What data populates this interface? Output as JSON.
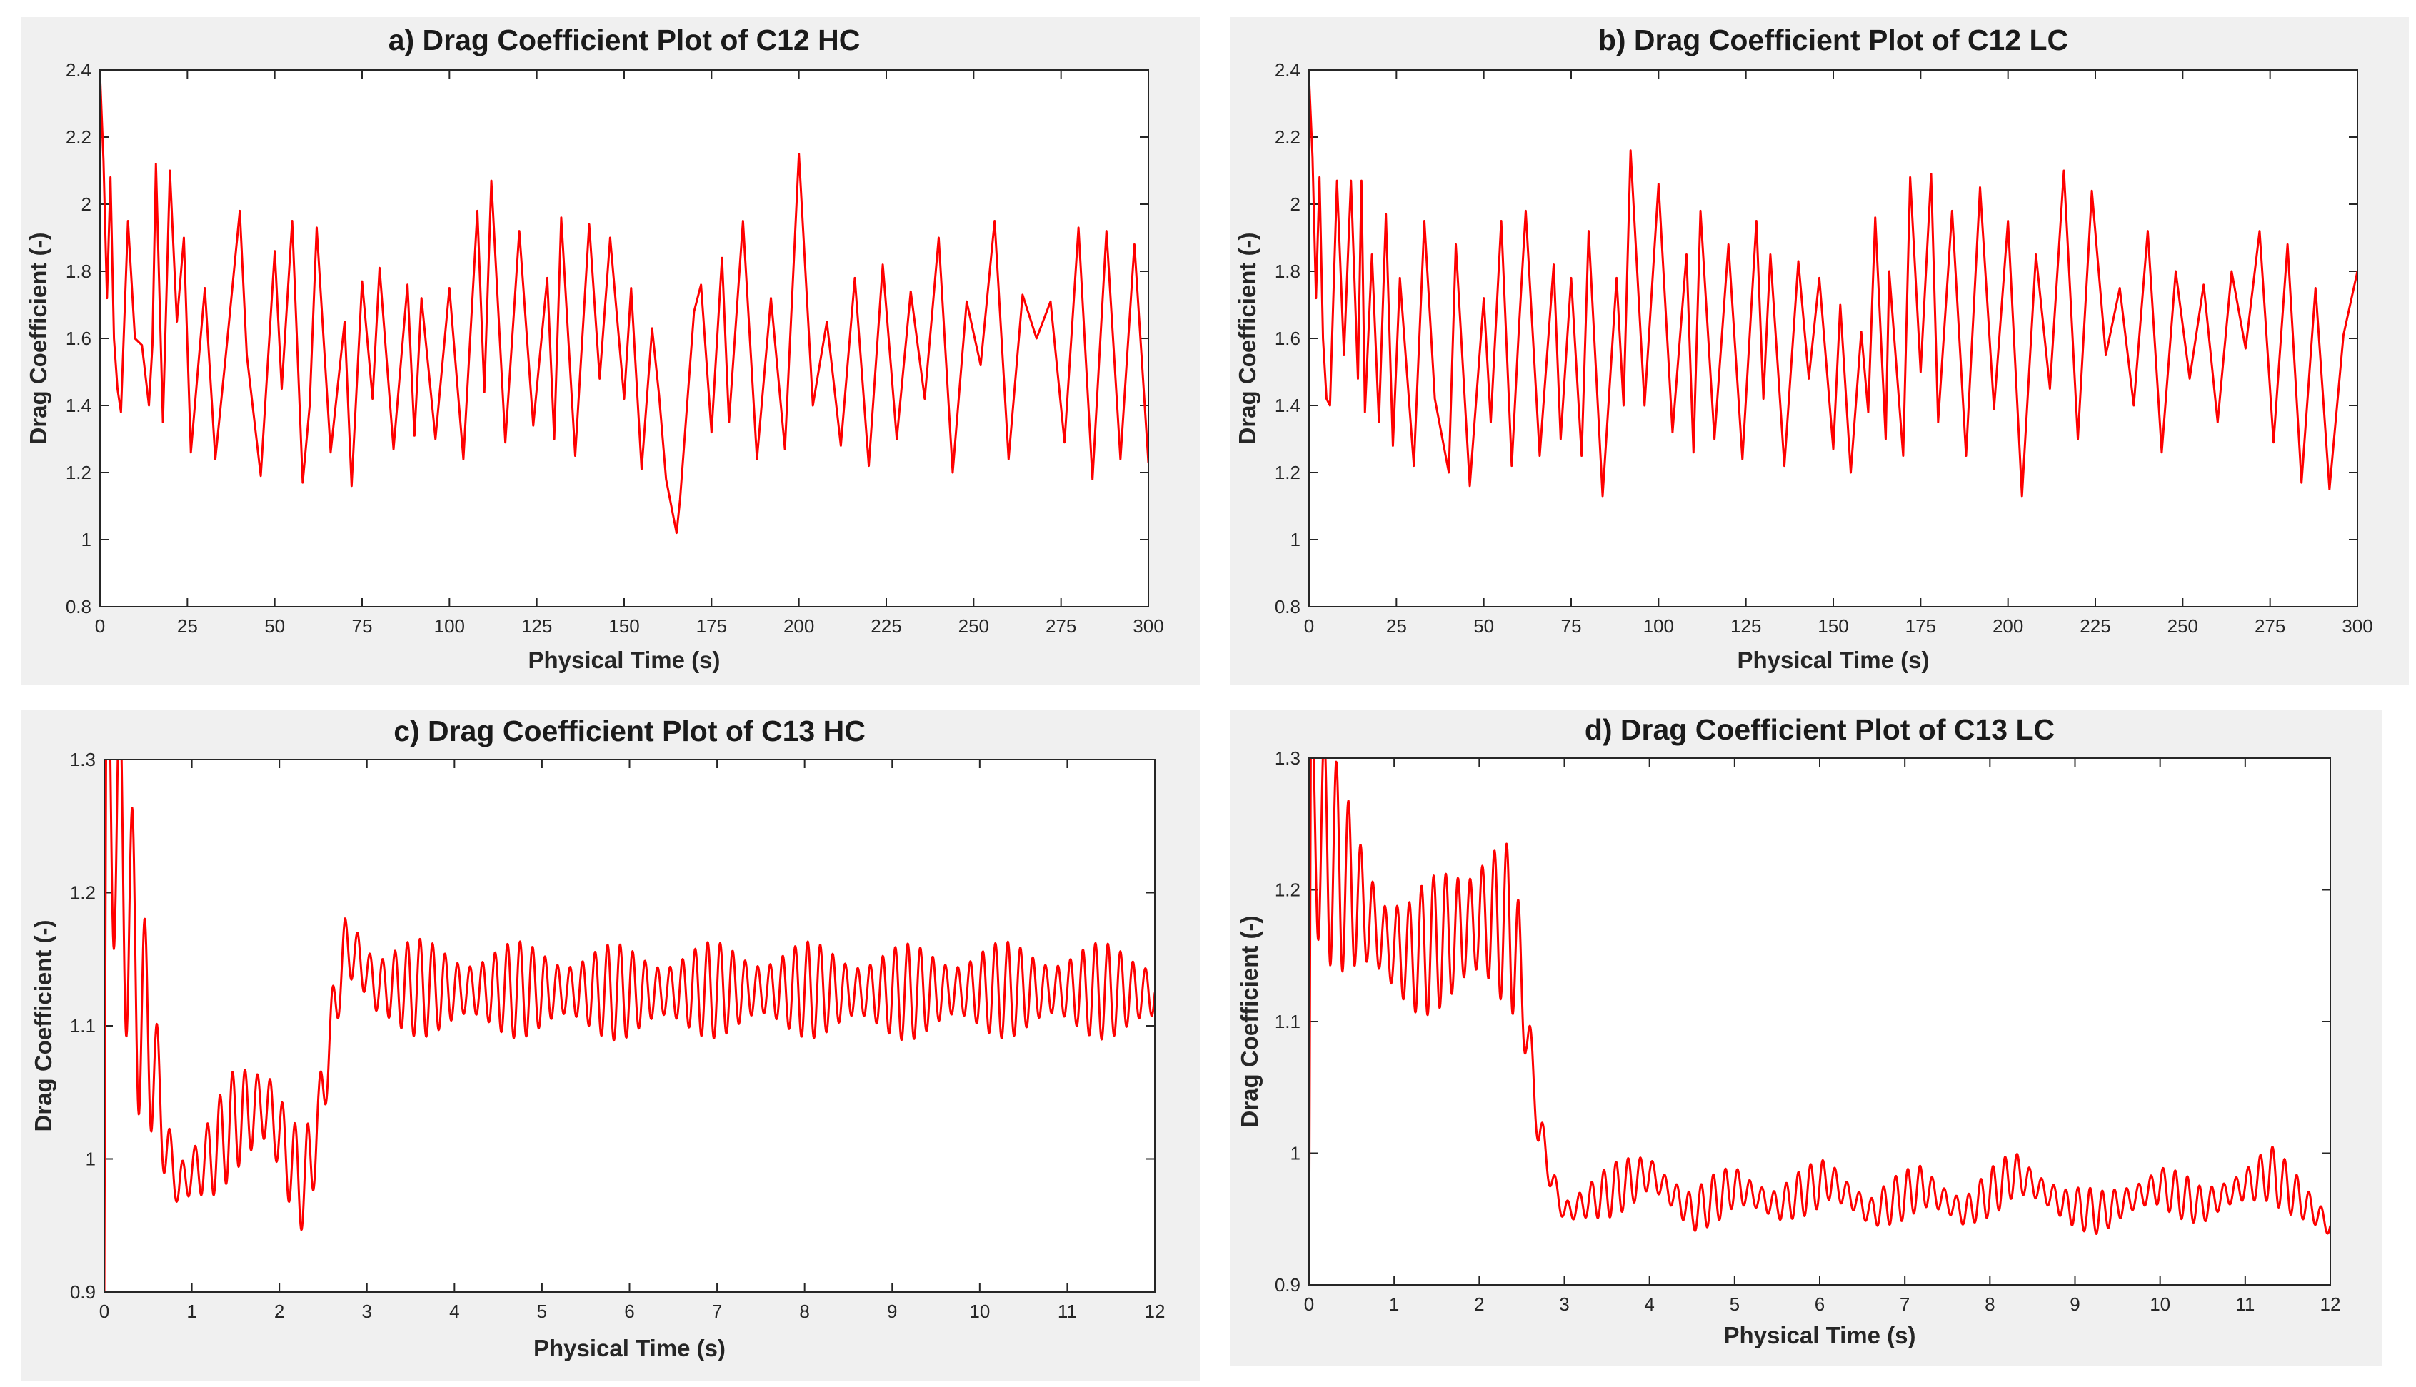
{
  "colors": {
    "line": "#ff0000",
    "axis": "#262626",
    "panel_bg": "#f0f0f0",
    "plot_bg": "#ffffff"
  },
  "chart_data": [
    {
      "id": "a",
      "type": "line",
      "title": "a) Drag Coefficient Plot of C12 HC",
      "xlabel": "Physical Time (s)",
      "ylabel": "Drag Coefficient (-)",
      "xlim": [
        0,
        300
      ],
      "ylim": [
        0.8,
        2.4
      ],
      "xticks": [
        0,
        25,
        50,
        75,
        100,
        125,
        150,
        175,
        200,
        225,
        250,
        275,
        300
      ],
      "yticks": [
        0.8,
        1,
        1.2,
        1.4,
        1.6,
        1.8,
        2,
        2.2,
        2.4
      ],
      "xtick_labels": [
        "0",
        "25",
        "50",
        "75",
        "100",
        "125",
        "150",
        "175",
        "200",
        "225",
        "250",
        "275",
        "300"
      ],
      "ytick_labels": [
        "0.8",
        "1",
        "1.2",
        "1.4",
        "1.6",
        "1.8",
        "2",
        "2.2",
        "2.4"
      ],
      "series": [
        {
          "name": "Cd",
          "color": "#ff0000",
          "x": [
            0,
            1,
            2,
            3,
            4,
            5,
            6,
            8,
            10,
            12,
            14,
            15,
            16,
            18,
            20,
            22,
            24,
            26,
            30,
            33,
            36,
            40,
            42,
            46,
            50,
            52,
            55,
            58,
            60,
            62,
            66,
            70,
            72,
            75,
            78,
            80,
            84,
            88,
            90,
            92,
            96,
            100,
            104,
            108,
            110,
            112,
            116,
            120,
            124,
            128,
            130,
            132,
            136,
            140,
            143,
            146,
            150,
            152,
            155,
            158,
            160,
            162,
            165,
            166,
            170,
            172,
            175,
            178,
            180,
            184,
            188,
            192,
            196,
            200,
            204,
            208,
            212,
            216,
            220,
            224,
            228,
            232,
            236,
            240,
            244,
            248,
            252,
            256,
            260,
            264,
            268,
            272,
            276,
            280,
            284,
            288,
            292,
            296,
            300
          ],
          "y": [
            2.39,
            2.13,
            1.72,
            2.08,
            1.6,
            1.45,
            1.38,
            1.95,
            1.6,
            1.58,
            1.4,
            1.58,
            2.12,
            1.35,
            2.1,
            1.65,
            1.9,
            1.26,
            1.75,
            1.24,
            1.55,
            1.98,
            1.55,
            1.19,
            1.86,
            1.45,
            1.95,
            1.17,
            1.4,
            1.93,
            1.26,
            1.65,
            1.16,
            1.77,
            1.42,
            1.81,
            1.27,
            1.76,
            1.31,
            1.72,
            1.3,
            1.75,
            1.24,
            1.98,
            1.44,
            2.07,
            1.29,
            1.92,
            1.34,
            1.78,
            1.3,
            1.96,
            1.25,
            1.94,
            1.48,
            1.9,
            1.42,
            1.75,
            1.21,
            1.63,
            1.43,
            1.18,
            1.02,
            1.12,
            1.68,
            1.76,
            1.32,
            1.84,
            1.35,
            1.95,
            1.24,
            1.72,
            1.27,
            2.15,
            1.4,
            1.65,
            1.28,
            1.78,
            1.22,
            1.82,
            1.3,
            1.74,
            1.42,
            1.9,
            1.2,
            1.71,
            1.52,
            1.95,
            1.24,
            1.73,
            1.6,
            1.71,
            1.29,
            1.93,
            1.18,
            1.92,
            1.24,
            1.88,
            1.23
          ]
        }
      ]
    },
    {
      "id": "b",
      "type": "line",
      "title": "b) Drag Coefficient Plot of C12 LC",
      "xlabel": "Physical Time (s)",
      "ylabel": "Drag Coefficient (-)",
      "xlim": [
        0,
        300
      ],
      "ylim": [
        0.8,
        2.4
      ],
      "xticks": [
        0,
        25,
        50,
        75,
        100,
        125,
        150,
        175,
        200,
        225,
        250,
        275,
        300
      ],
      "yticks": [
        0.8,
        1,
        1.2,
        1.4,
        1.6,
        1.8,
        2,
        2.2,
        2.4
      ],
      "xtick_labels": [
        "0",
        "25",
        "50",
        "75",
        "100",
        "125",
        "150",
        "175",
        "200",
        "225",
        "250",
        "275",
        "300"
      ],
      "ytick_labels": [
        "0.8",
        "1",
        "1.2",
        "1.4",
        "1.6",
        "1.8",
        "2",
        "2.2",
        "2.4"
      ],
      "series": [
        {
          "name": "Cd",
          "color": "#ff0000",
          "x": [
            0,
            1,
            2,
            3,
            4,
            5,
            6,
            8,
            10,
            12,
            14,
            15,
            16,
            18,
            20,
            22,
            24,
            26,
            30,
            33,
            36,
            40,
            42,
            46,
            50,
            52,
            55,
            58,
            60,
            62,
            66,
            70,
            72,
            75,
            78,
            80,
            84,
            88,
            90,
            92,
            96,
            100,
            104,
            108,
            110,
            112,
            116,
            120,
            124,
            128,
            130,
            132,
            136,
            140,
            143,
            146,
            150,
            152,
            155,
            158,
            160,
            162,
            165,
            166,
            170,
            172,
            175,
            178,
            180,
            184,
            188,
            192,
            196,
            200,
            204,
            208,
            212,
            216,
            220,
            224,
            228,
            232,
            236,
            240,
            244,
            248,
            252,
            256,
            260,
            264,
            268,
            272,
            276,
            280,
            284,
            288,
            292,
            296,
            300
          ],
          "y": [
            2.38,
            2.14,
            1.72,
            2.08,
            1.6,
            1.42,
            1.4,
            2.07,
            1.55,
            2.07,
            1.48,
            2.07,
            1.38,
            1.85,
            1.35,
            1.97,
            1.28,
            1.78,
            1.22,
            1.95,
            1.42,
            1.2,
            1.88,
            1.16,
            1.72,
            1.35,
            1.95,
            1.22,
            1.62,
            1.98,
            1.25,
            1.82,
            1.3,
            1.78,
            1.25,
            1.92,
            1.13,
            1.78,
            1.4,
            2.16,
            1.4,
            2.06,
            1.32,
            1.85,
            1.26,
            1.98,
            1.3,
            1.88,
            1.24,
            1.95,
            1.42,
            1.85,
            1.22,
            1.83,
            1.48,
            1.78,
            1.27,
            1.7,
            1.2,
            1.62,
            1.38,
            1.96,
            1.3,
            1.8,
            1.25,
            2.08,
            1.5,
            2.09,
            1.35,
            1.98,
            1.25,
            2.05,
            1.39,
            1.95,
            1.13,
            1.85,
            1.45,
            2.1,
            1.3,
            2.04,
            1.55,
            1.75,
            1.4,
            1.92,
            1.26,
            1.8,
            1.48,
            1.76,
            1.35,
            1.8,
            1.57,
            1.92,
            1.29,
            1.88,
            1.17,
            1.75,
            1.15,
            1.61,
            1.8
          ]
        }
      ]
    },
    {
      "id": "c",
      "type": "line",
      "title": "c) Drag Coefficient Plot of C13 HC",
      "xlabel": "Physical Time (s)",
      "ylabel": "Drag Coefficient (-)",
      "xlim": [
        0,
        12
      ],
      "ylim": [
        0.9,
        1.3
      ],
      "xticks": [
        0,
        1,
        2,
        3,
        4,
        5,
        6,
        7,
        8,
        9,
        10,
        11,
        12
      ],
      "yticks": [
        0.9,
        1,
        1.1,
        1.2,
        1.3
      ],
      "xtick_labels": [
        "0",
        "1",
        "2",
        "3",
        "4",
        "5",
        "6",
        "7",
        "8",
        "9",
        "10",
        "11",
        "12"
      ],
      "ytick_labels": [
        "0.9",
        "1",
        "1.1",
        "1.2",
        "1.3"
      ],
      "envelope_keys": {
        "t": [
          0.05,
          0.25,
          0.4,
          0.55,
          0.7,
          0.85,
          1.0,
          1.2,
          1.5,
          1.8,
          1.95,
          2.1,
          2.3,
          2.45,
          2.6,
          2.75,
          2.9,
          3.1,
          4,
          5,
          6,
          7,
          8,
          9,
          10,
          11,
          12
        ],
        "mean": [
          1.3,
          1.2,
          1.12,
          1.08,
          1.01,
          0.98,
          0.99,
          1.0,
          1.03,
          1.04,
          1.03,
          1.0,
          0.98,
          1.03,
          1.1,
          1.16,
          1.15,
          1.13,
          1.127,
          1.127,
          1.125,
          1.127,
          1.127,
          1.125,
          1.127,
          1.127,
          1.125
        ],
        "amp": [
          0.1,
          0.08,
          0.07,
          0.06,
          0.035,
          0.025,
          0.02,
          0.025,
          0.03,
          0.03,
          0.045,
          0.04,
          0.035,
          0.02,
          0.02,
          0.02,
          0.025,
          0.028,
          0.027,
          0.027,
          0.027,
          0.027,
          0.027,
          0.027,
          0.027,
          0.027,
          0.027
        ],
        "freq_hz": 7
      },
      "series": [
        {
          "name": "Cd",
          "color": "#ff0000",
          "start": [
            [
              0,
              0.9
            ],
            [
              0.02,
              1.3
            ]
          ]
        }
      ]
    },
    {
      "id": "d",
      "type": "line",
      "title": "d) Drag Coefficient Plot of C13 LC",
      "xlabel": "Physical Time (s)",
      "ylabel": "Drag Coefficient (-)",
      "xlim": [
        0,
        12
      ],
      "ylim": [
        0.9,
        1.3
      ],
      "xticks": [
        0,
        1,
        2,
        3,
        4,
        5,
        6,
        7,
        8,
        9,
        10,
        11,
        12
      ],
      "yticks": [
        0.9,
        1,
        1.1,
        1.2,
        1.3
      ],
      "xtick_labels": [
        "0",
        "1",
        "2",
        "3",
        "4",
        "5",
        "6",
        "7",
        "8",
        "9",
        "10",
        "11",
        "12"
      ],
      "ytick_labels": [
        "0.9",
        "1",
        "1.1",
        "1.2",
        "1.3"
      ],
      "envelope_keys": {
        "t": [
          0.05,
          0.3,
          0.6,
          0.9,
          1.2,
          1.5,
          1.8,
          2.1,
          2.4,
          2.55,
          2.7,
          2.85,
          3.0,
          3.5,
          4.0,
          4.5,
          5.0,
          5.5,
          6.1,
          6.6,
          7.2,
          7.7,
          8.3,
          8.9,
          9.3,
          10.0,
          10.5,
          11.3,
          12
        ],
        "mean": [
          1.25,
          1.22,
          1.19,
          1.16,
          1.15,
          1.16,
          1.17,
          1.18,
          1.17,
          1.1,
          1.02,
          0.98,
          0.955,
          0.97,
          0.985,
          0.955,
          0.975,
          0.96,
          0.98,
          0.955,
          0.975,
          0.955,
          0.985,
          0.96,
          0.955,
          0.975,
          0.96,
          0.985,
          0.945
        ],
        "amp": [
          0.07,
          0.06,
          0.05,
          0.04,
          0.035,
          0.04,
          0.05,
          0.06,
          0.05,
          0.02,
          0.015,
          0.012,
          0.012,
          0.015,
          0.015,
          0.013,
          0.015,
          0.012,
          0.015,
          0.012,
          0.015,
          0.012,
          0.015,
          0.012,
          0.013,
          0.014,
          0.012,
          0.016,
          0.012
        ],
        "freq_hz": 7
      },
      "series": [
        {
          "name": "Cd",
          "color": "#ff0000",
          "start": [
            [
              0,
              0.9
            ],
            [
              0.02,
              1.3
            ]
          ]
        }
      ]
    }
  ]
}
